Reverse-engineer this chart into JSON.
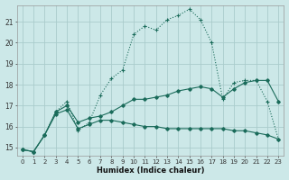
{
  "xlabel": "Humidex (Indice chaleur)",
  "bg_color": "#cce8e8",
  "grid_color": "#aacccc",
  "line_color": "#1a6b5a",
  "xlim": [
    -0.5,
    23.5
  ],
  "ylim": [
    14.6,
    21.8
  ],
  "yticks": [
    15,
    16,
    17,
    18,
    19,
    20,
    21
  ],
  "xticks": [
    0,
    1,
    2,
    3,
    4,
    5,
    6,
    7,
    8,
    9,
    10,
    11,
    12,
    13,
    14,
    15,
    16,
    17,
    18,
    19,
    20,
    21,
    22,
    23
  ],
  "s1_x": [
    0,
    1,
    2,
    3,
    4,
    5,
    6,
    7,
    8,
    9,
    10,
    11,
    12,
    13,
    14,
    15,
    16,
    17,
    18,
    19,
    20,
    21,
    22,
    23
  ],
  "s1_y": [
    14.9,
    14.8,
    15.6,
    16.7,
    17.2,
    15.8,
    16.2,
    17.5,
    18.3,
    18.7,
    20.4,
    20.8,
    20.6,
    21.1,
    21.3,
    21.6,
    21.1,
    20.0,
    17.3,
    18.1,
    18.2,
    18.2,
    17.2,
    15.4
  ],
  "s2_x": [
    0,
    1,
    2,
    3,
    4,
    5,
    6,
    7,
    8,
    9,
    10,
    11,
    12,
    13,
    14,
    15,
    16,
    17,
    18,
    19,
    20,
    21,
    22,
    23
  ],
  "s2_y": [
    14.9,
    14.8,
    15.6,
    16.6,
    16.8,
    15.9,
    16.1,
    16.3,
    16.3,
    16.2,
    16.1,
    16.0,
    16.0,
    15.9,
    15.9,
    15.9,
    15.9,
    15.9,
    15.9,
    15.8,
    15.8,
    15.7,
    15.6,
    15.4
  ],
  "s3_x": [
    0,
    1,
    2,
    3,
    4,
    5,
    6,
    7,
    8,
    9,
    10,
    11,
    12,
    13,
    14,
    15,
    16,
    17,
    18,
    19,
    20,
    21,
    22,
    23
  ],
  "s3_y": [
    14.9,
    14.8,
    15.6,
    16.7,
    17.0,
    16.2,
    16.4,
    16.5,
    16.7,
    17.0,
    17.3,
    17.3,
    17.4,
    17.5,
    17.7,
    17.8,
    17.9,
    17.8,
    17.4,
    17.8,
    18.1,
    18.2,
    18.2,
    17.2
  ]
}
